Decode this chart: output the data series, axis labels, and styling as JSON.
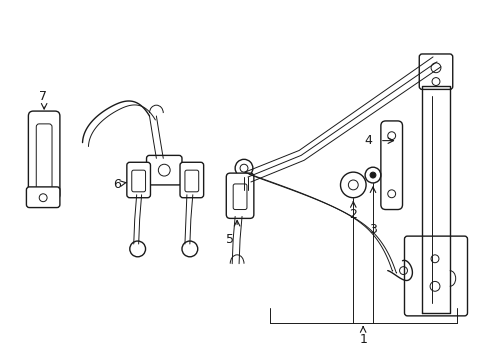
{
  "bg_color": "#ffffff",
  "line_color": "#1a1a1a",
  "lw": 1.0,
  "lw_thin": 0.7,
  "figsize": [
    4.89,
    3.6
  ],
  "dpi": 100
}
